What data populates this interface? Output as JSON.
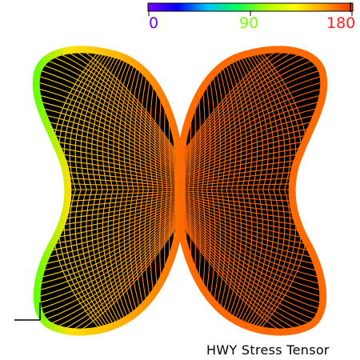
{
  "colorbar": {
    "min_label": "0",
    "mid_label": "90",
    "max_label": "180",
    "min_color": "#6a00ff",
    "mid_color": "#7cff00",
    "max_color": "#ff2020",
    "stops": [
      "#7a00ff",
      "#0000ff",
      "#00c0ff",
      "#00ff60",
      "#aaff00",
      "#ffff00",
      "#ffa000",
      "#ff3000"
    ],
    "bar_value": 178
  },
  "caption": "HWY Stress Tensor",
  "colors": {
    "background": "#ffffff",
    "surface_interior": "#000000",
    "mesh_warm": "#ff6a00",
    "mesh_mid": "#ffb000",
    "mesh_cool": "#ffe000",
    "rim_green": "#66ff00"
  },
  "icons": {
    "axis_indicator": "axis-corner-icon"
  }
}
